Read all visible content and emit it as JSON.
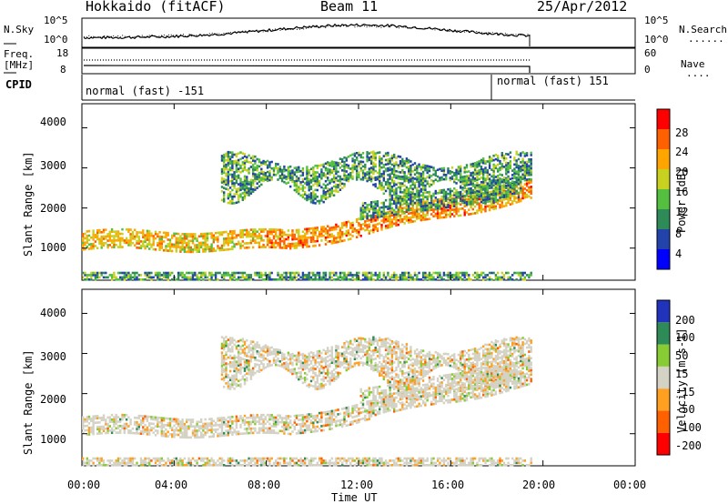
{
  "header": {
    "station": "Hokkaido (fitACF)",
    "beam": "Beam 11",
    "date": "25/Apr/2012"
  },
  "noise_panel": {
    "left_label": "N.Sky",
    "left_ticks": [
      "10^5",
      "10^0"
    ],
    "right_ticks": [
      "10^5",
      "10^0"
    ],
    "right_label": "N.Search",
    "right_line": "......"
  },
  "freq_panel": {
    "left_label_1": "Freq.",
    "left_label_2": "[MHz]",
    "left_ticks": [
      "18",
      "8"
    ],
    "right_ticks": [
      "60",
      "0"
    ],
    "right_label": "Nave",
    "right_line": "...."
  },
  "cpid_panel": {
    "label": "CPID",
    "modes": [
      {
        "text": "normal (fast) -151"
      },
      {
        "text": "normal (fast) 151"
      }
    ]
  },
  "chart_data": [
    {
      "type": "heatmap",
      "ylabel": "Slant Range [km]",
      "yticks": [
        "4000",
        "3000",
        "2000",
        "1000"
      ],
      "ylim": [
        200,
        4600
      ],
      "colorbar": {
        "label": "Power [dB]",
        "ticks": [
          "28",
          "24",
          "20",
          "16",
          "12",
          "8",
          "4"
        ],
        "range": [
          0,
          30
        ],
        "colors": [
          "#0000ff",
          "#2244aa",
          "#2e8b57",
          "#55c040",
          "#c8d020",
          "#ffa500",
          "#ff6000",
          "#ff0000"
        ]
      }
    },
    {
      "type": "heatmap",
      "ylabel": "Slant Range [km]",
      "yticks": [
        "4000",
        "3000",
        "2000",
        "1000"
      ],
      "ylim": [
        200,
        4600
      ],
      "colorbar": {
        "label": "Velocity [m s-1]",
        "ticks": [
          "200",
          "100",
          "50",
          "15",
          "-15",
          "-50",
          "-100",
          "-200"
        ],
        "colors": [
          "#2233bb",
          "#2e8b57",
          "#88cc33",
          "#d4d2c4",
          "#ffa020",
          "#ff6000",
          "#ff0000"
        ]
      }
    }
  ],
  "x_axis": {
    "ticks": [
      "00:00",
      "04:00",
      "08:00",
      "12:00",
      "16:00",
      "20:00",
      "00:00"
    ],
    "label": "Time UT"
  }
}
